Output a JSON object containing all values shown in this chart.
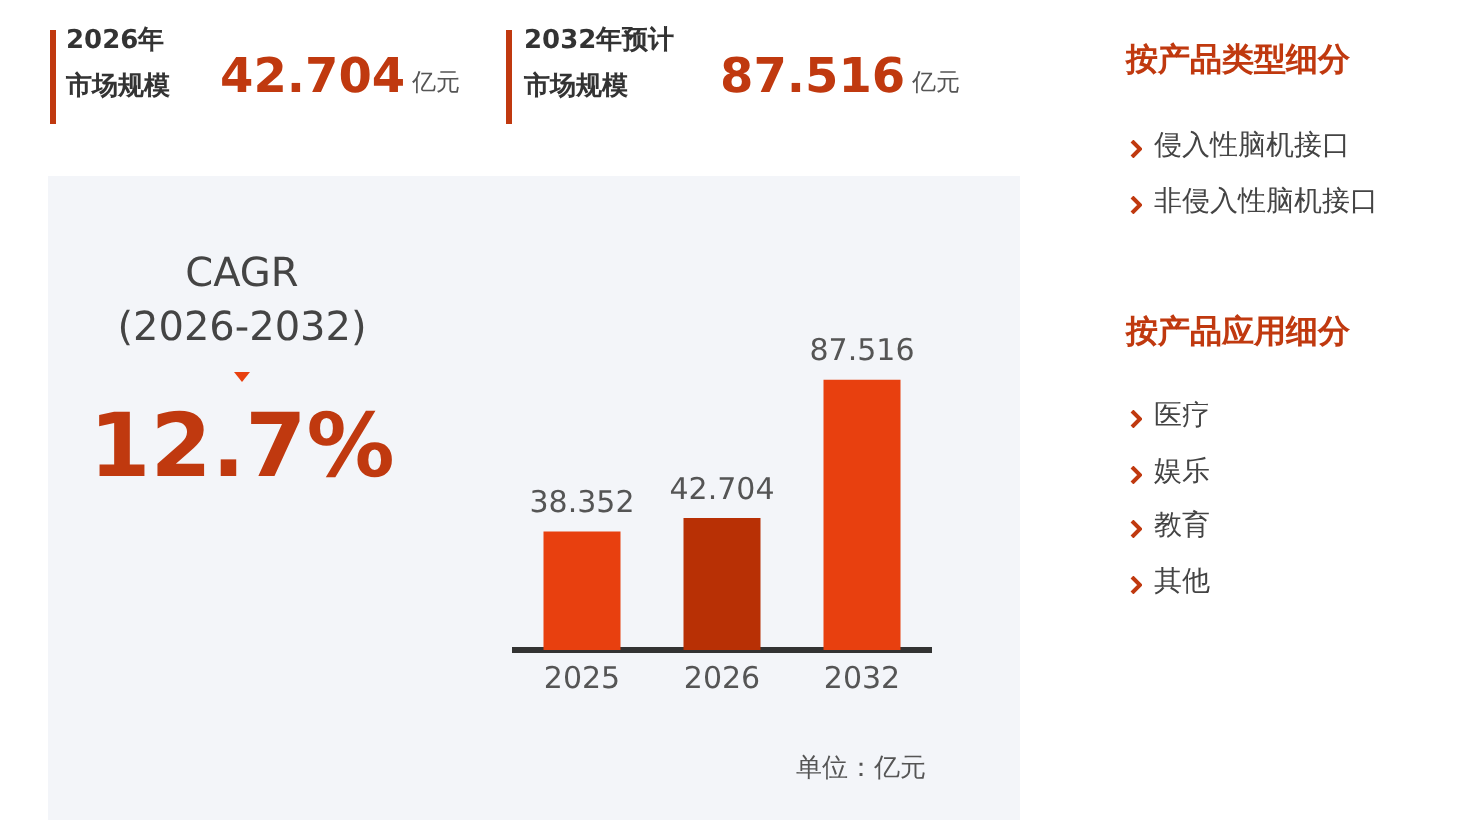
{
  "chart_data": {
    "type": "bar",
    "categories": [
      "2025",
      "2026",
      "2032"
    ],
    "values": [
      38.352,
      42.704,
      87.516
    ],
    "colors": [
      "#e8400f",
      "#b83005",
      "#e8400f"
    ],
    "data_labels": true,
    "grid": false,
    "legend": false,
    "tick_labels": "x",
    "annotations": [
      "2026年",
      "市场规模",
      "42.704",
      "亿元",
      "2032年预计",
      "市场规模",
      "87.516",
      "亿元",
      "CAGR",
      "(2026-2032)",
      "12.7%",
      "按产品类型细分",
      "侵入性脑机接口",
      "非侵入性脑机接口",
      "按产品应用细分",
      "医疗",
      "娱乐",
      "教育",
      "其他",
      "单位：亿元"
    ]
  }
}
